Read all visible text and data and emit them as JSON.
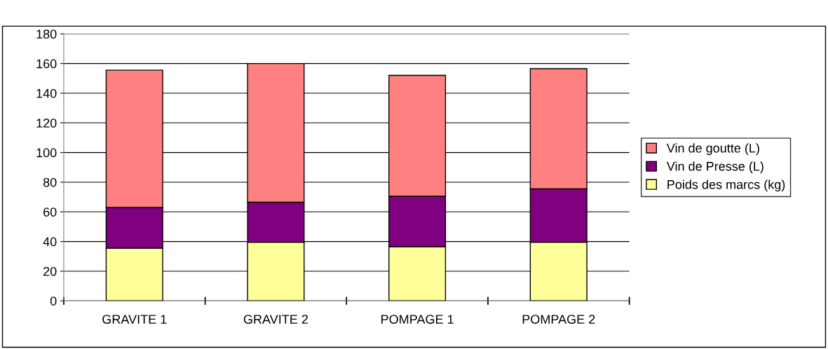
{
  "chart_data": {
    "type": "bar",
    "stacked": true,
    "categories": [
      "GRAVITE 1",
      "GRAVITE 2",
      "POMPAGE 1",
      "POMPAGE 2"
    ],
    "series": [
      {
        "name": "Poids des marcs (kg)",
        "color": "#ffff99",
        "values": [
          35.5,
          39.5,
          36.5,
          39.5
        ]
      },
      {
        "name": "Vin de Presse (L)",
        "color": "#800080",
        "values": [
          27.5,
          27,
          34,
          36
        ]
      },
      {
        "name": "Vin de goutte (L)",
        "color": "#ff8080",
        "values": [
          92.5,
          93.5,
          81.5,
          81
        ]
      }
    ],
    "ylim": [
      0,
      180
    ],
    "yticks": [
      0,
      20,
      40,
      60,
      80,
      100,
      120,
      140,
      160,
      180
    ],
    "grid": "y",
    "legend": "right"
  }
}
